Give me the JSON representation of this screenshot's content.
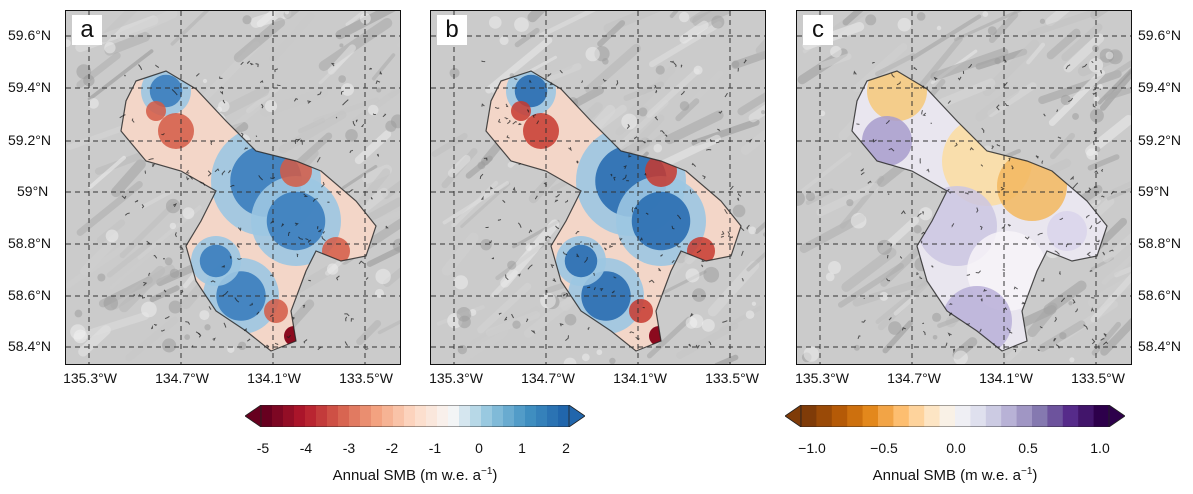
{
  "panels": [
    {
      "letter": "a"
    },
    {
      "letter": "b"
    },
    {
      "letter": "c"
    }
  ],
  "lat_labels": [
    "59.6°N",
    "59.4°N",
    "59.2°N",
    "59°N",
    "58.8°N",
    "58.6°N",
    "58.4°N"
  ],
  "lon_labels": [
    "135.3°W",
    "134.7°W",
    "134.1°W",
    "133.5°W"
  ],
  "colorbar_smb": {
    "ticks": [
      "-5",
      "-4",
      "-3",
      "-2",
      "-1",
      "0",
      "1",
      "2"
    ],
    "range": [
      -5,
      2
    ],
    "label_main": "Annual SMB (m w.e. a",
    "label_sup": "−1",
    "label_end": ")",
    "colors": [
      "#67001f",
      "#b2182b",
      "#d6604d",
      "#f4a582",
      "#fddbc7",
      "#f7f7f7",
      "#92c5de",
      "#4393c3",
      "#2166ac"
    ]
  },
  "colorbar_diff": {
    "ticks": [
      "−1.0",
      "−0.5",
      "0.0",
      "0.5",
      "1.0"
    ],
    "range": [
      -1.0,
      1.0
    ],
    "label_main": "Annual SMB (m w.e. a",
    "label_sup": "−1",
    "label_end": ")",
    "colors": [
      "#7f3b08",
      "#b35806",
      "#e08214",
      "#fdb863",
      "#fee0b6",
      "#f7f7f7",
      "#d8daeb",
      "#b2abd2",
      "#8073ac",
      "#542788",
      "#2d004b"
    ]
  }
}
